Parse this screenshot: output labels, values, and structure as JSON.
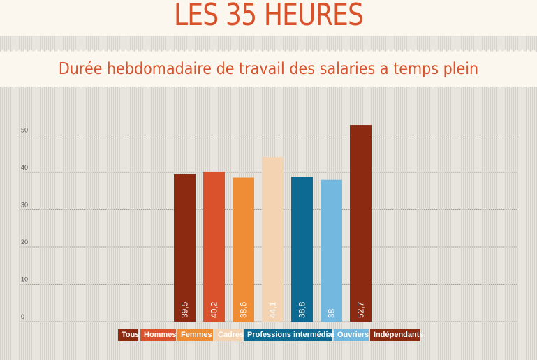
{
  "header": {
    "title": "LES 35 HEURES",
    "subtitle": "Durée hebdomadaire de travail des salaries a temps plein"
  },
  "colors": {
    "accent": "#d9522b",
    "gridline": "#8a8780",
    "axis_text": "#555555"
  },
  "chart_data": {
    "type": "bar",
    "title": "Durée hebdomadaire de travail des salaries a temps plein",
    "xlabel": "",
    "ylabel": "",
    "ylim": [
      0,
      50
    ],
    "yticks": [
      "0",
      "10",
      "20",
      "30",
      "40",
      "50"
    ],
    "grid": true,
    "legend_placement": "bottom",
    "categories": [
      "Tous",
      "Hommes",
      "Femmes",
      "Cadres",
      "Professions intermédiaires",
      "Ouvriers",
      "Indépendants"
    ],
    "values": [
      39.5,
      40.2,
      38.6,
      44.1,
      38.8,
      38,
      52.7
    ],
    "value_labels": [
      "39,5",
      "40,2",
      "38,6",
      "44,1",
      "38,8",
      "38",
      "52,7"
    ],
    "colors": [
      "#8b2a10",
      "#d9522b",
      "#ef8c36",
      "#f4d3b3",
      "#0d6a93",
      "#73b8de",
      "#8b2a10"
    ]
  }
}
